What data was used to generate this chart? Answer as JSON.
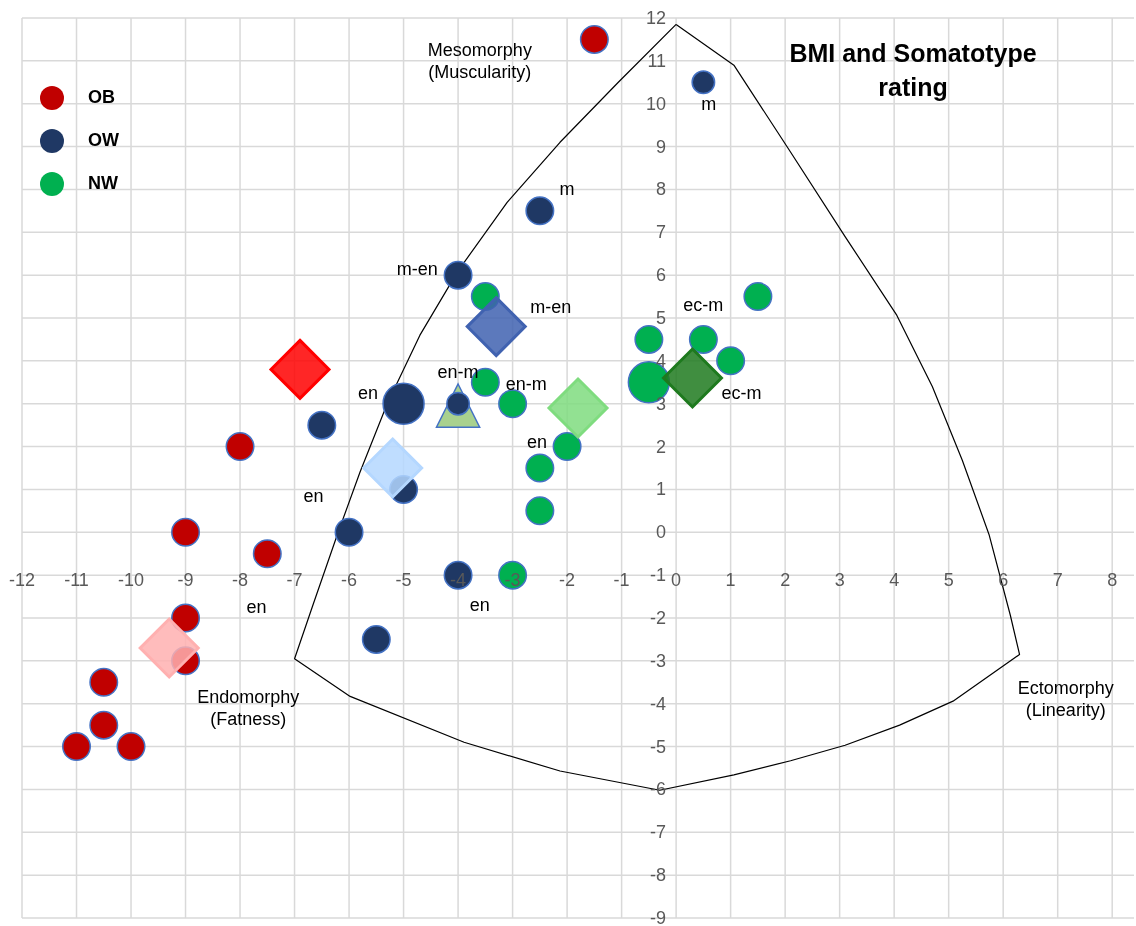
{
  "chart_data": {
    "type": "scatter",
    "title": "BMI and Somatotype rating",
    "xlim": [
      -12,
      8.4
    ],
    "ylim": [
      -9,
      12
    ],
    "xticks": [
      -12,
      -11,
      -10,
      -9,
      -8,
      -7,
      -6,
      -5,
      -4,
      -3,
      -2,
      -1,
      0,
      1,
      2,
      3,
      4,
      5,
      6,
      7,
      8
    ],
    "yticks": [
      -9,
      -8,
      -7,
      -6,
      -5,
      -4,
      -3,
      -2,
      -1,
      0,
      1,
      2,
      3,
      4,
      5,
      6,
      7,
      8,
      9,
      10,
      11,
      12
    ],
    "grid": true,
    "legend": "top left",
    "series": [
      {
        "type": "scatter",
        "marker": "triangle",
        "color": "#a9d18e",
        "x": [
          -4
        ],
        "values": [
          2.9
        ]
      },
      {
        "name": "OB",
        "type": "bubble",
        "color": "#c00000",
        "x": [
          -1.5,
          -8,
          -9,
          -7.5,
          -9,
          -9,
          -10.5,
          -10.5,
          -11,
          -10
        ],
        "values": [
          11.5,
          2,
          0,
          -0.5,
          -2,
          -3,
          -3.5,
          -4.5,
          -5,
          -5
        ],
        "sizes": [
          0.45,
          0.45,
          0.45,
          0.45,
          0.45,
          0.45,
          0.45,
          0.45,
          0.45,
          0.45
        ]
      },
      {
        "name": "OW",
        "type": "bubble",
        "color": "#1f3864",
        "x": [
          0.5,
          -2.5,
          -4,
          -5,
          -4,
          -6.5,
          -5,
          -6,
          -4,
          -5.5
        ],
        "values": [
          10.5,
          7.5,
          6,
          3,
          3,
          2.5,
          1,
          0,
          -1,
          -2.5
        ],
        "sizes": [
          0.3,
          0.45,
          0.45,
          1,
          0.3,
          0.45,
          0.45,
          0.45,
          0.45,
          0.45
        ]
      },
      {
        "name": "NW",
        "type": "bubble",
        "color": "#00b050",
        "x": [
          -3.5,
          -3.5,
          -3,
          -2.5,
          -2.5,
          -2,
          -3,
          -0.5,
          -0.5,
          0.5,
          1,
          1.5
        ],
        "values": [
          5.5,
          3.5,
          3,
          1.5,
          0.5,
          2,
          -1,
          3.5,
          4.5,
          4.5,
          4,
          5.5
        ],
        "sizes": [
          0.45,
          0.45,
          0.45,
          0.45,
          0.45,
          0.45,
          0.45,
          1,
          0.45,
          0.45,
          0.45,
          0.45
        ]
      },
      {
        "type": "scatter",
        "marker": "diamond",
        "color": "#ff0000",
        "x": [
          -6.9
        ],
        "values": [
          3.8
        ]
      },
      {
        "type": "scatter",
        "marker": "diamond",
        "color": "#4062b0",
        "x": [
          -3.3
        ],
        "values": [
          4.8
        ]
      },
      {
        "type": "scatter",
        "marker": "diamond",
        "color": "#b4d7ff",
        "x": [
          -5.2
        ],
        "values": [
          1.5
        ]
      },
      {
        "type": "scatter",
        "marker": "diamond",
        "color": "#ffb0b0",
        "x": [
          -9.3
        ],
        "values": [
          -2.7
        ]
      },
      {
        "type": "scatter",
        "marker": "diamond",
        "color": "#7fdc7f",
        "x": [
          -1.8
        ],
        "values": [
          2.9
        ]
      },
      {
        "type": "scatter",
        "marker": "diamond",
        "color": "#1e7a1e",
        "x": [
          0.3
        ],
        "values": [
          3.6
        ]
      }
    ],
    "annotations": [
      "Mesomorphy\n(Muscularity)",
      "Endomorphy\n(Fatness)",
      "Ectomorphy\n(Linearity)",
      "m",
      "m",
      "m-en",
      "m-en",
      "ec-m",
      "en-m",
      "en-m",
      "en",
      "ec-m",
      "en",
      "en",
      "en",
      "en"
    ]
  }
}
